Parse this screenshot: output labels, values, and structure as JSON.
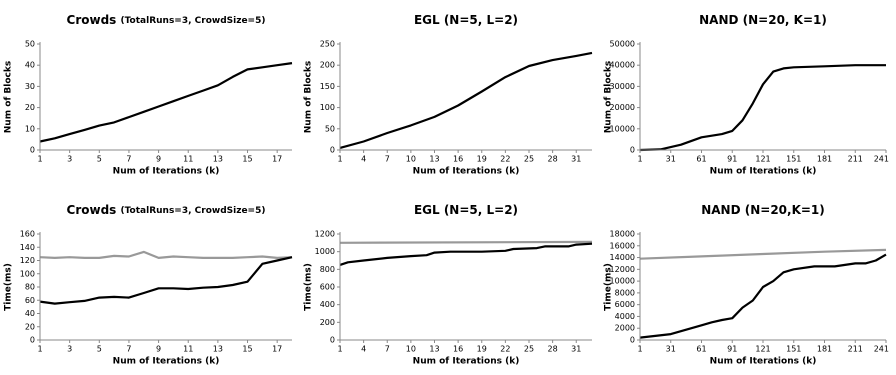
{
  "chart_data": [
    {
      "type": "line",
      "title": "Crowds",
      "subtitle": "(TotalRuns=3, CrowdSize=5)",
      "xlabel": "Num of Iterations (k)",
      "ylabel": "Num of Blocks",
      "xlim": [
        1,
        18
      ],
      "xticks": [
        1,
        3,
        5,
        7,
        9,
        11,
        13,
        15,
        17
      ],
      "ylim": [
        0,
        50
      ],
      "yticks": [
        0,
        10,
        20,
        30,
        40,
        50
      ],
      "series": [
        {
          "color": "#000000",
          "x": [
            1,
            2,
            3,
            4,
            5,
            6,
            7,
            8,
            9,
            10,
            11,
            12,
            13,
            14,
            15,
            16,
            17,
            18
          ],
          "values": [
            4,
            5.5,
            7.5,
            9.5,
            11.5,
            13,
            15.5,
            18,
            20.5,
            23,
            25.5,
            28,
            30.5,
            34.5,
            38,
            39,
            40,
            41
          ]
        }
      ]
    },
    {
      "type": "line",
      "title": "EGL (N=5, L=2)",
      "xlabel": "Num of Iterations (k)",
      "ylabel": "Num of Blocks",
      "xlim": [
        1,
        33
      ],
      "xticks": [
        1,
        4,
        7,
        10,
        13,
        16,
        19,
        22,
        25,
        28,
        31
      ],
      "ylim": [
        0,
        250
      ],
      "yticks": [
        0,
        50,
        100,
        150,
        200,
        250
      ],
      "series": [
        {
          "color": "#000000",
          "x": [
            1,
            4,
            7,
            10,
            13,
            16,
            19,
            22,
            25,
            28,
            31,
            33
          ],
          "values": [
            5,
            20,
            40,
            58,
            78,
            105,
            138,
            172,
            198,
            212,
            222,
            229
          ]
        }
      ]
    },
    {
      "type": "line",
      "title": "NAND (N=20, K=1)",
      "xlabel": "Num of Iterations (k)",
      "ylabel": "Num of Blocks",
      "xlim": [
        1,
        241
      ],
      "xticks": [
        1,
        31,
        61,
        91,
        121,
        151,
        181,
        211,
        241
      ],
      "ylim": [
        0,
        50000
      ],
      "yticks": [
        0,
        10000,
        20000,
        30000,
        40000,
        50000
      ],
      "series": [
        {
          "color": "#000000",
          "x": [
            1,
            21,
            41,
            61,
            81,
            91,
            101,
            111,
            121,
            131,
            141,
            151,
            181,
            211,
            241
          ],
          "values": [
            0,
            300,
            2500,
            6000,
            7500,
            9000,
            14000,
            22000,
            31000,
            37000,
            38500,
            39000,
            39500,
            40000,
            40000
          ]
        }
      ]
    },
    {
      "type": "line",
      "title": "Crowds",
      "subtitle": "(TotalRuns=3, CrowdSize=5)",
      "xlabel": "Num of Iterations (k)",
      "ylabel": "Time(ms)",
      "xlim": [
        1,
        18
      ],
      "xticks": [
        1,
        3,
        5,
        7,
        9,
        11,
        13,
        15,
        17
      ],
      "ylim": [
        0,
        160
      ],
      "yticks": [
        0,
        20,
        40,
        60,
        80,
        100,
        120,
        140,
        160
      ],
      "series": [
        {
          "color": "#999999",
          "x": [
            1,
            2,
            3,
            4,
            5,
            6,
            7,
            8,
            9,
            10,
            11,
            12,
            13,
            14,
            15,
            16,
            17,
            18
          ],
          "values": [
            125,
            124,
            125,
            124,
            124,
            127,
            126,
            133,
            124,
            126,
            125,
            124,
            124,
            124,
            125,
            126,
            124,
            125
          ]
        },
        {
          "color": "#000000",
          "x": [
            1,
            2,
            3,
            4,
            5,
            6,
            7,
            8,
            9,
            10,
            11,
            12,
            13,
            14,
            15,
            16,
            17,
            18
          ],
          "values": [
            58,
            55,
            57,
            59,
            64,
            65,
            64,
            71,
            78,
            78,
            77,
            79,
            80,
            83,
            88,
            115,
            120,
            125
          ]
        }
      ]
    },
    {
      "type": "line",
      "title": "EGL (N=5, L=2)",
      "xlabel": "Num of Iterations (k)",
      "ylabel": "Time(ms)",
      "xlim": [
        1,
        33
      ],
      "xticks": [
        1,
        4,
        7,
        10,
        13,
        16,
        19,
        22,
        25,
        28,
        31
      ],
      "ylim": [
        0,
        1200
      ],
      "yticks": [
        0,
        200,
        400,
        600,
        800,
        1000,
        1200
      ],
      "series": [
        {
          "color": "#999999",
          "x": [
            1,
            33
          ],
          "values": [
            1100,
            1110
          ]
        },
        {
          "color": "#000000",
          "x": [
            1,
            2,
            4,
            7,
            10,
            12,
            13,
            15,
            19,
            22,
            23,
            26,
            27,
            30,
            31,
            33
          ],
          "values": [
            850,
            880,
            900,
            930,
            950,
            960,
            990,
            1000,
            1000,
            1010,
            1030,
            1040,
            1060,
            1060,
            1080,
            1090
          ]
        }
      ]
    },
    {
      "type": "line",
      "title": "NAND (N=20,K=1)",
      "xlabel": "Num of Iterations (k)",
      "ylabel": "Time(ms)",
      "xlim": [
        1,
        241
      ],
      "xticks": [
        1,
        31,
        61,
        91,
        121,
        151,
        181,
        211,
        241
      ],
      "ylim": [
        0,
        18000
      ],
      "yticks": [
        0,
        2000,
        4000,
        6000,
        8000,
        10000,
        12000,
        14000,
        16000,
        18000
      ],
      "series": [
        {
          "color": "#999999",
          "x": [
            1,
            61,
            121,
            181,
            241
          ],
          "values": [
            13800,
            14200,
            14600,
            15000,
            15300
          ]
        },
        {
          "color": "#000000",
          "x": [
            1,
            31,
            61,
            71,
            81,
            91,
            101,
            111,
            121,
            131,
            141,
            151,
            171,
            191,
            211,
            221,
            231,
            241
          ],
          "values": [
            400,
            1000,
            2500,
            3000,
            3400,
            3700,
            5500,
            6700,
            9000,
            10000,
            11500,
            12000,
            12500,
            12500,
            13000,
            13000,
            13500,
            14500
          ]
        }
      ]
    }
  ]
}
